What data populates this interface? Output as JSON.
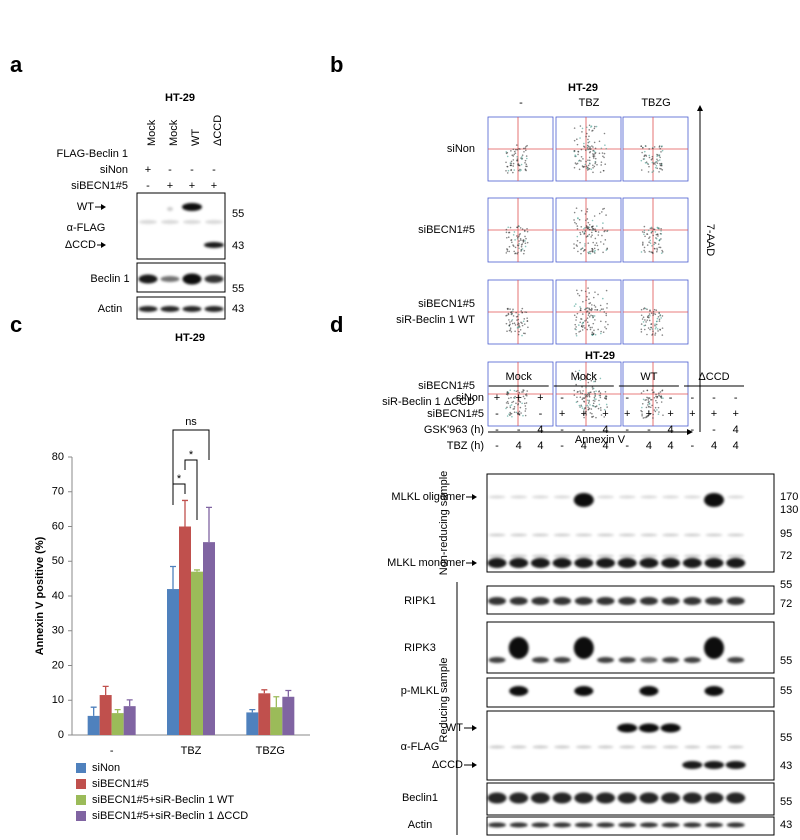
{
  "panel_labels": [
    "a",
    "b",
    "c",
    "d"
  ],
  "panel_a": {
    "title": "HT-29",
    "header_label": "FLAG-Beclin 1",
    "lanes": [
      "Mock",
      "Mock",
      "WT",
      "ΔCCD"
    ],
    "conditions": [
      {
        "name": "siNon",
        "signs": [
          "+",
          "-",
          "-",
          "-"
        ]
      },
      {
        "name": "siBECN1#5",
        "signs": [
          "-",
          "+",
          "+",
          "+"
        ]
      }
    ],
    "blots": [
      {
        "labels": [
          "WT",
          "α-FLAG",
          "ΔCCD"
        ],
        "mw": [
          "55",
          "43"
        ]
      },
      {
        "labels": [
          "Beclin 1"
        ],
        "mw": [
          "55"
        ]
      },
      {
        "labels": [
          "Actin"
        ],
        "mw": [
          "43"
        ]
      }
    ]
  },
  "panel_b": {
    "title": "HT-29",
    "columns": [
      "-",
      "TBZ",
      "TBZG"
    ],
    "rows": [
      [
        "siNon"
      ],
      [
        "siBECN1#5"
      ],
      [
        "siBECN1#5",
        "siR-Beclin 1 WT"
      ],
      [
        "siBECN1#5",
        "siR-Beclin 1 ΔCCD"
      ]
    ],
    "x_axis": "Annexin V",
    "y_axis": "7-AAD"
  },
  "chart_data": {
    "type": "bar",
    "title": "HT-29",
    "y_label": "Annexin V positive (%)",
    "categories": [
      "-",
      "TBZ",
      "TBZG"
    ],
    "series": [
      {
        "name": "siNon",
        "color": "#4f81bd",
        "values": [
          5.5,
          42,
          6.5
        ],
        "errors": [
          2.5,
          6.5,
          0.8
        ]
      },
      {
        "name": "siBECN1#5",
        "color": "#c0504d",
        "values": [
          11.5,
          60,
          12
        ],
        "errors": [
          2.5,
          7.5,
          1
        ]
      },
      {
        "name": "siBECN1#5+siR-Beclin 1 WT",
        "color": "#9bbb59",
        "values": [
          6.3,
          47,
          8
        ],
        "errors": [
          1,
          0.5,
          3
        ]
      },
      {
        "name": "siBECN1#5+siR-Beclin 1 ΔCCD",
        "color": "#8064a2",
        "values": [
          8.3,
          55.5,
          11
        ],
        "errors": [
          1.8,
          10,
          1.8
        ]
      }
    ],
    "ylim": [
      0,
      80
    ],
    "yticks": [
      0,
      10,
      20,
      30,
      40,
      50,
      60,
      70,
      80
    ],
    "annotations": [
      "*",
      "*",
      "ns"
    ]
  },
  "panel_d": {
    "title": "HT-29",
    "groups": [
      "Mock",
      "Mock",
      "WT",
      "ΔCCD"
    ],
    "conditions": [
      {
        "name": "siNon",
        "signs": [
          "+",
          "+",
          "+",
          "-",
          "-",
          "-",
          "-",
          "-",
          "-",
          "-",
          "-",
          "-"
        ]
      },
      {
        "name": "siBECN1#5",
        "signs": [
          "-",
          "-",
          "-",
          "+",
          "+",
          "+",
          "+",
          "+",
          "+",
          "+",
          "+",
          "+"
        ]
      },
      {
        "name": "GSK'963 (h)",
        "signs": [
          "-",
          "-",
          "4",
          "-",
          "-",
          "4",
          "-",
          "-",
          "4",
          "-",
          "-",
          "4"
        ]
      },
      {
        "name": "TBZ (h)",
        "signs": [
          "-",
          "4",
          "4",
          "-",
          "4",
          "4",
          "-",
          "4",
          "4",
          "-",
          "4",
          "4"
        ]
      }
    ],
    "sample_groups": [
      "Non-reducing sample",
      "Reducing sample"
    ],
    "blots": [
      {
        "labels": [
          "MLKL oligomer",
          "MLKL monomer"
        ],
        "mw": [
          "170",
          "130",
          "95",
          "72",
          "55"
        ]
      },
      {
        "labels": [
          "RIPK1"
        ],
        "mw": [
          "72"
        ]
      },
      {
        "labels": [
          "RIPK3"
        ],
        "mw": [
          "55"
        ]
      },
      {
        "labels": [
          "p-MLKL"
        ],
        "mw": [
          "55"
        ]
      },
      {
        "labels": [
          "WT",
          "α-FLAG",
          "ΔCCD"
        ],
        "mw": [
          "55",
          "43"
        ]
      },
      {
        "labels": [
          "Beclin1"
        ],
        "mw": [
          "55"
        ]
      },
      {
        "labels": [
          "Actin"
        ],
        "mw": [
          "43"
        ]
      }
    ]
  }
}
